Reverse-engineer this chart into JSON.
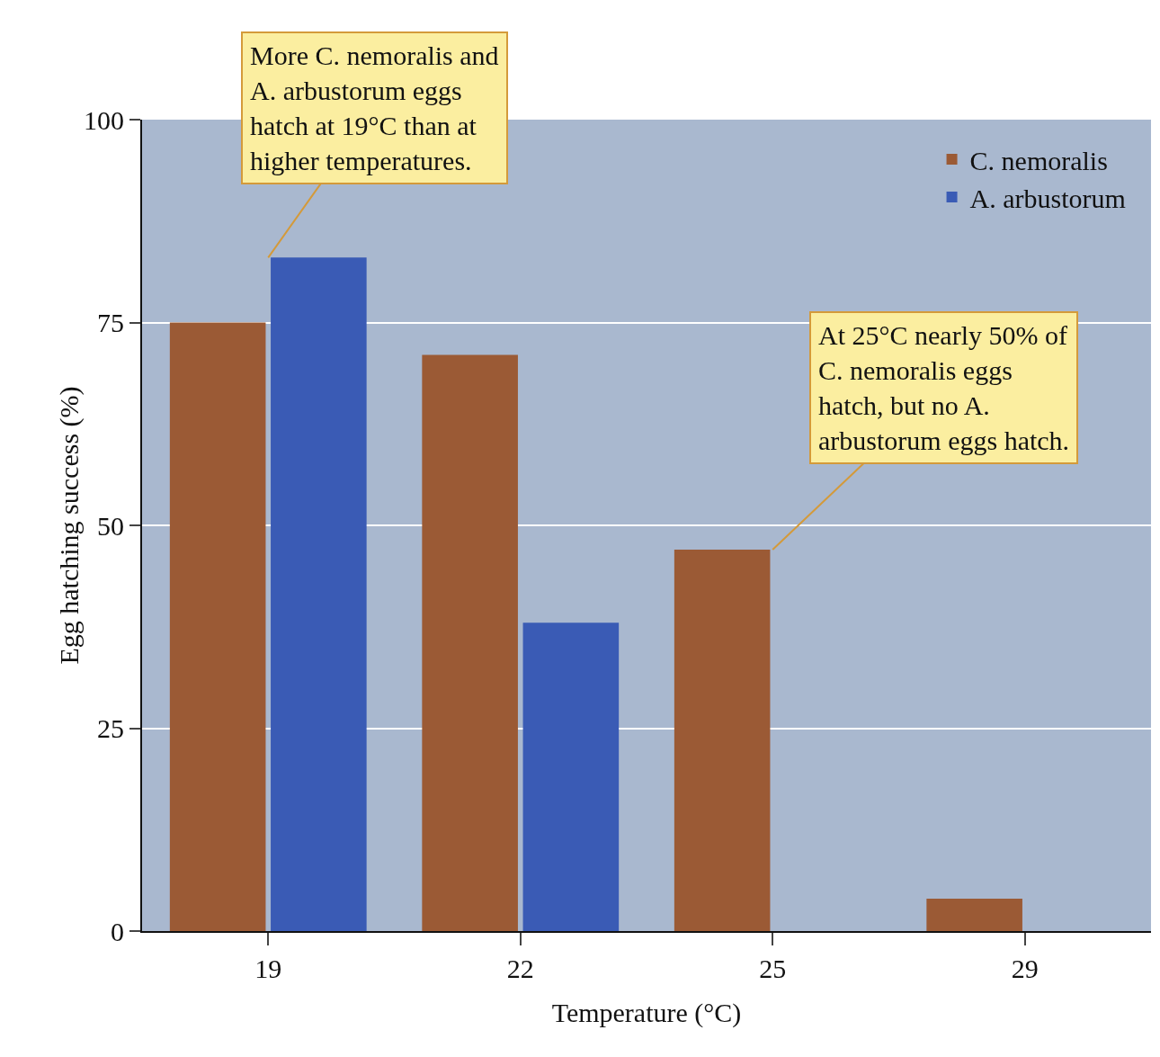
{
  "chart_data": {
    "type": "bar",
    "xlabel": "Temperature (°C)",
    "ylabel": "Egg hatching success (%)",
    "categories": [
      "19",
      "22",
      "25",
      "29"
    ],
    "series": [
      {
        "name": "C. nemoralis",
        "color": "#9b5a35",
        "values": [
          75,
          71,
          47,
          4
        ]
      },
      {
        "name": "A. arbustorum",
        "color": "#3a5bb5",
        "values": [
          83,
          38,
          0,
          0
        ]
      }
    ],
    "ylim": [
      0,
      100
    ],
    "yticks": [
      0,
      25,
      50,
      75,
      100
    ],
    "grid": "y",
    "legend": "top right",
    "annotations": [
      {
        "text": "More C. nemoralis and A. arbustorum eggs hatch at 19°C than at higher temperatures.",
        "x": "19",
        "y": 83
      },
      {
        "text": "At 25°C nearly 50% of C. nemoralis eggs hatch, but no A. arbustorum eggs hatch.",
        "x": "25",
        "y": 47
      }
    ]
  }
}
